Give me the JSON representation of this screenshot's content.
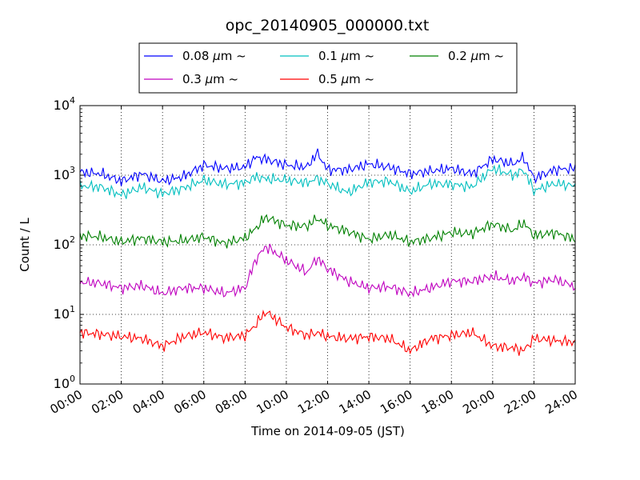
{
  "chart_data": {
    "type": "line",
    "title": "opc_20140905_000000.txt",
    "xlabel": "Time on 2014-09-05 (JST)",
    "ylabel": "Count / L",
    "yscale": "log",
    "ylim": [
      1,
      10000
    ],
    "xlim": [
      "00:00",
      "24:00"
    ],
    "x_ticks": [
      "00:00",
      "02:00",
      "04:00",
      "06:00",
      "08:00",
      "10:00",
      "12:00",
      "14:00",
      "16:00",
      "18:00",
      "20:00",
      "22:00",
      "24:00"
    ],
    "y_ticks": [
      {
        "value": 1,
        "base": "10",
        "exp": "0"
      },
      {
        "value": 10,
        "base": "10",
        "exp": "1"
      },
      {
        "value": 100,
        "base": "10",
        "exp": "2"
      },
      {
        "value": 1000,
        "base": "10",
        "exp": "3"
      },
      {
        "value": 10000,
        "base": "10",
        "exp": "4"
      }
    ],
    "grid": true,
    "legend_position": "top",
    "x": [
      "00:00",
      "01:00",
      "02:00",
      "03:00",
      "04:00",
      "05:00",
      "06:00",
      "07:00",
      "08:00",
      "08:30",
      "09:00",
      "10:00",
      "11:00",
      "11:30",
      "12:00",
      "13:00",
      "14:00",
      "15:00",
      "16:00",
      "17:00",
      "18:00",
      "19:00",
      "20:00",
      "21:00",
      "21:30",
      "22:00",
      "23:00",
      "24:00"
    ],
    "series": [
      {
        "name": "0.08",
        "unit": "μm",
        "suffix": "~",
        "color": "#0000ff",
        "values": [
          1100,
          1050,
          820,
          1050,
          820,
          950,
          1400,
          1250,
          1300,
          1800,
          1700,
          1400,
          1300,
          2100,
          1200,
          1200,
          1450,
          1300,
          1050,
          1150,
          1250,
          1050,
          1700,
          1450,
          1800,
          900,
          1200,
          1250
        ]
      },
      {
        "name": "0.1",
        "unit": "μm",
        "suffix": "~",
        "color": "#00bfbf",
        "values": [
          700,
          680,
          520,
          670,
          540,
          650,
          850,
          740,
          780,
          950,
          880,
          850,
          780,
          900,
          760,
          560,
          800,
          820,
          580,
          760,
          740,
          680,
          1250,
          1000,
          1200,
          600,
          760,
          700
        ]
      },
      {
        "name": "0.2",
        "unit": "μm",
        "suffix": "~",
        "color": "#008000",
        "values": [
          135,
          130,
          110,
          125,
          110,
          115,
          130,
          105,
          125,
          170,
          250,
          190,
          185,
          240,
          190,
          155,
          120,
          140,
          110,
          125,
          150,
          145,
          200,
          160,
          210,
          135,
          150,
          120
        ]
      },
      {
        "name": "0.3",
        "unit": "μm",
        "suffix": "~",
        "color": "#bf00bf",
        "values": [
          29,
          28,
          24,
          26,
          20,
          24,
          24,
          20,
          24,
          60,
          95,
          60,
          40,
          65,
          45,
          30,
          24,
          25,
          20,
          24,
          30,
          30,
          35,
          30,
          35,
          28,
          32,
          25
        ]
      },
      {
        "name": "0.5",
        "unit": "μm",
        "suffix": "~",
        "color": "#ff0000",
        "values": [
          5.5,
          5.2,
          4.8,
          4.5,
          3.5,
          4.8,
          5.5,
          4.6,
          5.0,
          7.0,
          11.0,
          6.5,
          5.0,
          5.5,
          4.8,
          4.5,
          4.8,
          4.5,
          3.0,
          4.5,
          5.0,
          5.5,
          3.5,
          3.3,
          3.0,
          4.5,
          4.2,
          4.0
        ]
      }
    ]
  }
}
